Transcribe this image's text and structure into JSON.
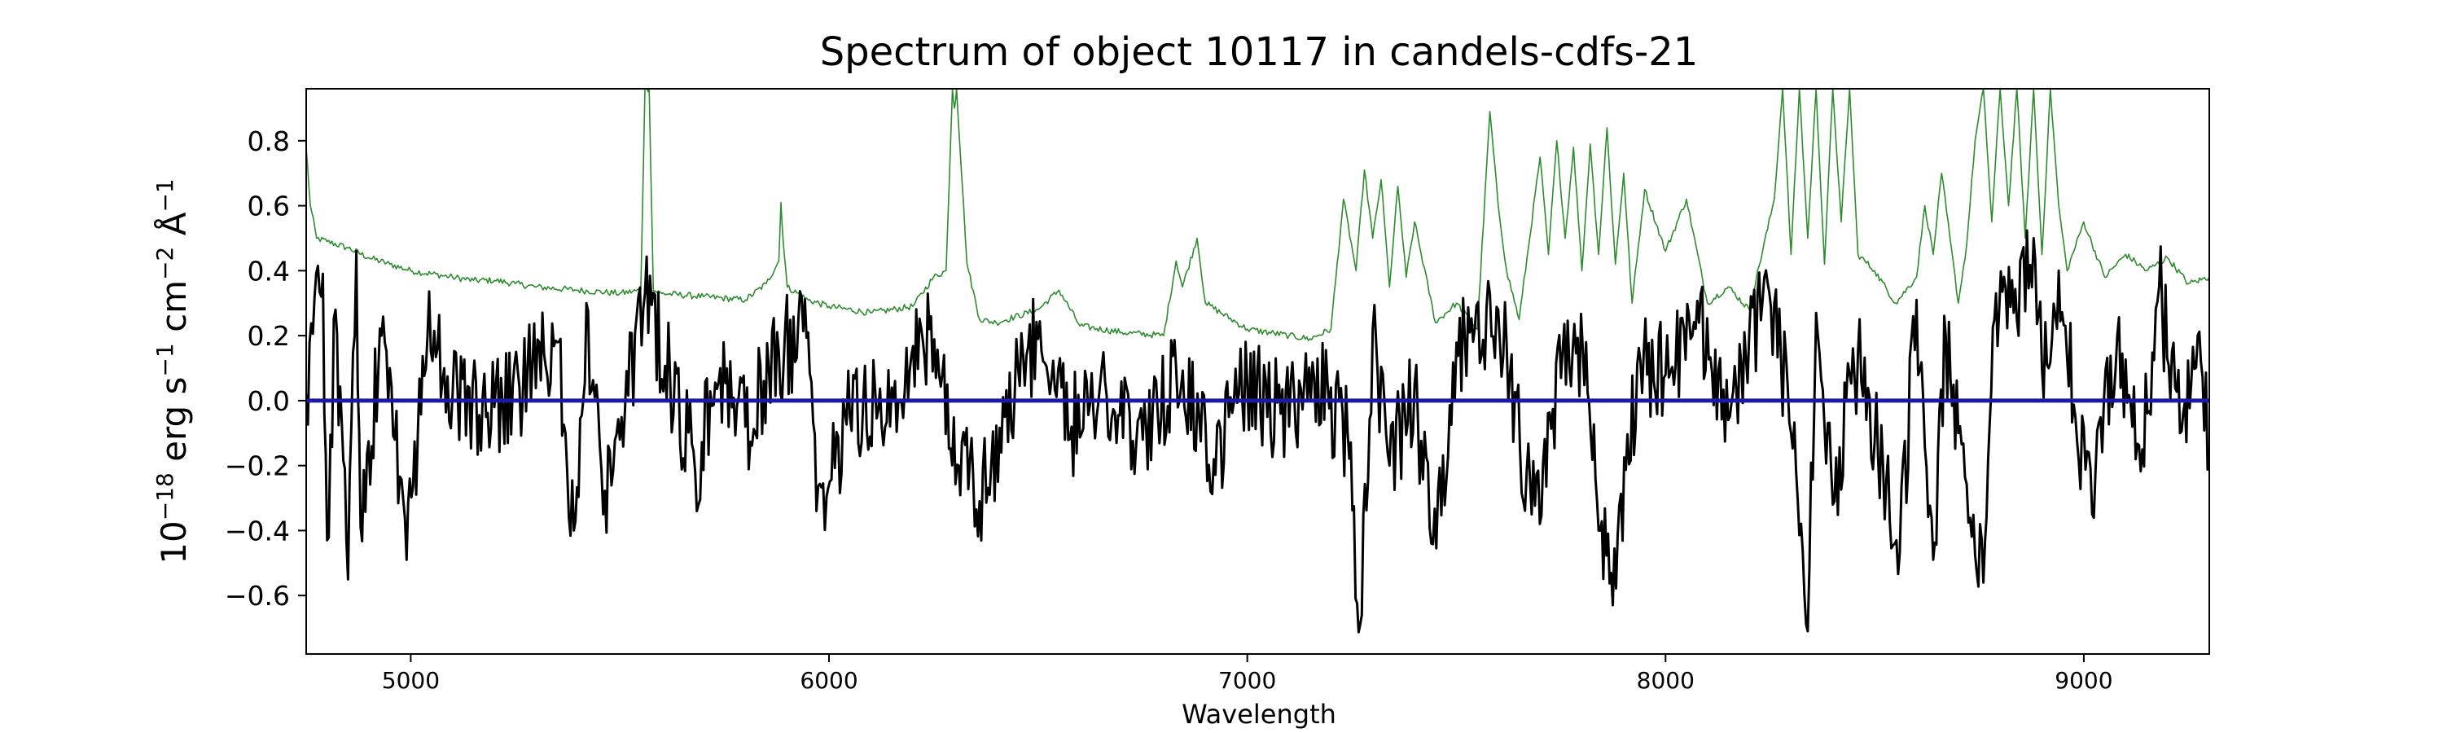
{
  "chart_data": {
    "type": "line",
    "title": "Spectrum of object 10117 in candels-cdfs-21",
    "xlabel": "Wavelength",
    "ylabel": {
      "base": "10",
      "exp1": "−18",
      "unit1": " erg s",
      "exp2": "−1",
      "unit2": " cm",
      "exp3": "−2",
      "unit3": " Å",
      "exp4": "−1"
    },
    "xlim": [
      4750,
      9300
    ],
    "ylim": [
      -0.78,
      0.96
    ],
    "xticks": [
      5000,
      6000,
      7000,
      8000,
      9000
    ],
    "xtick_labels": [
      "5000",
      "6000",
      "7000",
      "8000",
      "9000"
    ],
    "yticks": [
      -0.6,
      -0.4,
      -0.2,
      0.0,
      0.2,
      0.4,
      0.6,
      0.8
    ],
    "ytick_labels": [
      "−0.6",
      "−0.4",
      "−0.2",
      "0.0",
      "0.2",
      "0.4",
      "0.6",
      "0.8"
    ],
    "grid": false,
    "legend": "none",
    "series": [
      {
        "role": "error",
        "color": "#2e8b2e",
        "x": [
          4750,
          4760,
          4775,
          4800,
          4850,
          4900,
          4950,
          5000,
          5100,
          5150,
          5200,
          5250,
          5300,
          5400,
          5500,
          5550,
          5560,
          5565,
          5570,
          5580,
          5600,
          5700,
          5800,
          5850,
          5880,
          5885,
          5890,
          5900,
          5950,
          6000,
          6100,
          6200,
          6250,
          6280,
          6295,
          6300,
          6305,
          6330,
          6360,
          6400,
          6500,
          6550,
          6600,
          6700,
          6800,
          6830,
          6845,
          6880,
          6900,
          7000,
          7100,
          7150,
          7200,
          7230,
          7260,
          7280,
          7300,
          7320,
          7340,
          7360,
          7380,
          7400,
          7450,
          7500,
          7550,
          7580,
          7600,
          7620,
          7650,
          7700,
          7720,
          7740,
          7760,
          7780,
          7800,
          7820,
          7840,
          7860,
          7880,
          7900,
          7920,
          7950,
          8000,
          8050,
          8100,
          8150,
          8200,
          8260,
          8280,
          8300,
          8320,
          8340,
          8360,
          8380,
          8400,
          8420,
          8440,
          8460,
          8500,
          8550,
          8600,
          8620,
          8640,
          8660,
          8680,
          8700,
          8720,
          8740,
          8760,
          8780,
          8800,
          8820,
          8840,
          8860,
          8880,
          8900,
          8920,
          8940,
          8960,
          9000,
          9050,
          9100,
          9150,
          9200,
          9250,
          9300
        ],
        "values": [
          0.78,
          0.6,
          0.5,
          0.49,
          0.47,
          0.44,
          0.42,
          0.4,
          0.38,
          0.37,
          0.37,
          0.36,
          0.35,
          0.34,
          0.33,
          0.34,
          0.96,
          0.96,
          0.96,
          0.34,
          0.33,
          0.32,
          0.31,
          0.36,
          0.43,
          0.61,
          0.5,
          0.35,
          0.31,
          0.29,
          0.27,
          0.29,
          0.38,
          0.4,
          0.96,
          0.9,
          0.96,
          0.42,
          0.25,
          0.24,
          0.28,
          0.34,
          0.23,
          0.21,
          0.2,
          0.43,
          0.35,
          0.5,
          0.3,
          0.22,
          0.2,
          0.19,
          0.22,
          0.62,
          0.4,
          0.71,
          0.5,
          0.68,
          0.35,
          0.66,
          0.38,
          0.55,
          0.24,
          0.3,
          0.22,
          0.89,
          0.6,
          0.4,
          0.25,
          0.75,
          0.45,
          0.8,
          0.5,
          0.78,
          0.4,
          0.79,
          0.45,
          0.84,
          0.42,
          0.7,
          0.3,
          0.65,
          0.46,
          0.62,
          0.3,
          0.35,
          0.28,
          0.62,
          0.96,
          0.45,
          0.96,
          0.5,
          0.96,
          0.42,
          0.96,
          0.55,
          0.96,
          0.45,
          0.4,
          0.3,
          0.38,
          0.6,
          0.45,
          0.7,
          0.5,
          0.3,
          0.48,
          0.8,
          0.96,
          0.55,
          0.96,
          0.6,
          0.96,
          0.5,
          0.96,
          0.45,
          0.96,
          0.6,
          0.4,
          0.55,
          0.38,
          0.45,
          0.4,
          0.44,
          0.36,
          0.38
        ]
      },
      {
        "role": "flux",
        "color": "#000000",
        "x": [
          4750,
          4790,
          4800,
          4820,
          4850,
          4870,
          4880,
          4930,
          4950,
          4990,
          5040,
          5100,
          5180,
          5260,
          5350,
          5390,
          5420,
          5460,
          5500,
          5560,
          5620,
          5680,
          5740,
          5800,
          5880,
          5950,
          5970,
          6050,
          6150,
          6240,
          6310,
          6360,
          6420,
          6500,
          6580,
          6660,
          6750,
          6830,
          6920,
          7000,
          7080,
          7160,
          7240,
          7270,
          7300,
          7340,
          7400,
          7440,
          7520,
          7600,
          7680,
          7750,
          7810,
          7840,
          7870,
          7940,
          8000,
          8080,
          8150,
          8200,
          8260,
          8300,
          8340,
          8360,
          8400,
          8460,
          8520,
          8560,
          8600,
          8640,
          8670,
          8700,
          8760,
          8790,
          8840,
          8880,
          8900,
          8940,
          8980,
          9020,
          9080,
          9140,
          9180,
          9230,
          9280,
          9300
        ],
        "values": [
          0.02,
          0.39,
          -0.43,
          0.28,
          -0.55,
          0.46,
          -0.39,
          0.2,
          0.1,
          -0.49,
          0.2,
          0.02,
          -0.05,
          0.04,
          0.18,
          -0.4,
          0.3,
          -0.35,
          -0.12,
          0.33,
          0.07,
          -0.22,
          0.1,
          -0.08,
          0.15,
          0.21,
          -0.34,
          -0.05,
          0.04,
          0.22,
          -0.2,
          -0.31,
          -0.05,
          0.19,
          -0.08,
          0.06,
          -0.12,
          0.1,
          -0.18,
          0.05,
          -0.04,
          0.07,
          -0.1,
          -0.69,
          0.22,
          -0.2,
          0.05,
          -0.44,
          0.2,
          0.28,
          -0.35,
          0.07,
          0.18,
          -0.4,
          -0.53,
          0.12,
          0.08,
          0.24,
          -0.06,
          0.2,
          0.3,
          -0.1,
          -0.71,
          0.27,
          -0.32,
          0.15,
          -0.2,
          -0.47,
          0.31,
          -0.49,
          0.2,
          -0.1,
          -0.56,
          0.33,
          0.25,
          0.5,
          0.1,
          0.4,
          -0.05,
          -0.35,
          0.2,
          -0.15,
          0.35,
          -0.1,
          0.12,
          -0.2
        ]
      },
      {
        "role": "zero",
        "color": "#1a1aa6",
        "x": [
          4750,
          9300
        ],
        "values": [
          0.0,
          0.0
        ]
      }
    ]
  }
}
